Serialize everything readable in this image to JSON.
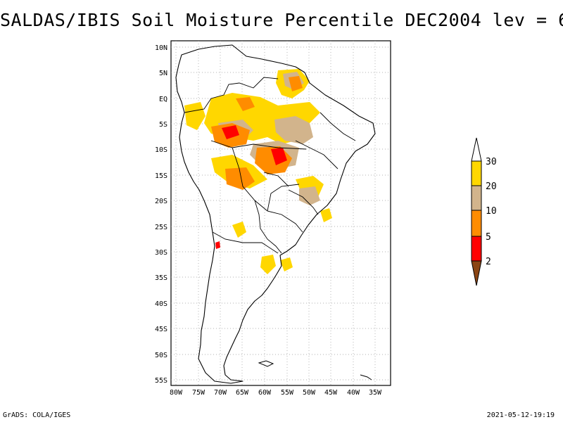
{
  "title": "SALDAS/IBIS Soil Moisture Percentile DEC2004 lev = 6",
  "footer": {
    "left": "GrADS: COLA/IGES",
    "right": "2021-05-12-19:19"
  },
  "axes": {
    "lat_labels": [
      "10N",
      "5N",
      "EQ",
      "5S",
      "10S",
      "15S",
      "20S",
      "25S",
      "30S",
      "35S",
      "40S",
      "45S",
      "50S",
      "55S"
    ],
    "lon_labels": [
      "80W",
      "75W",
      "70W",
      "65W",
      "60W",
      "55W",
      "50W",
      "45W",
      "40W",
      "35W"
    ]
  },
  "legend": {
    "labels": [
      "30",
      "20",
      "10",
      "5",
      "2"
    ],
    "colors": {
      "above_30": "#ffffff",
      "20_30": "#ffd700",
      "10_20": "#d2b48c",
      "5_10": "#ff8c00",
      "2_5": "#ff0000",
      "below_2": "#8b4513"
    }
  }
}
